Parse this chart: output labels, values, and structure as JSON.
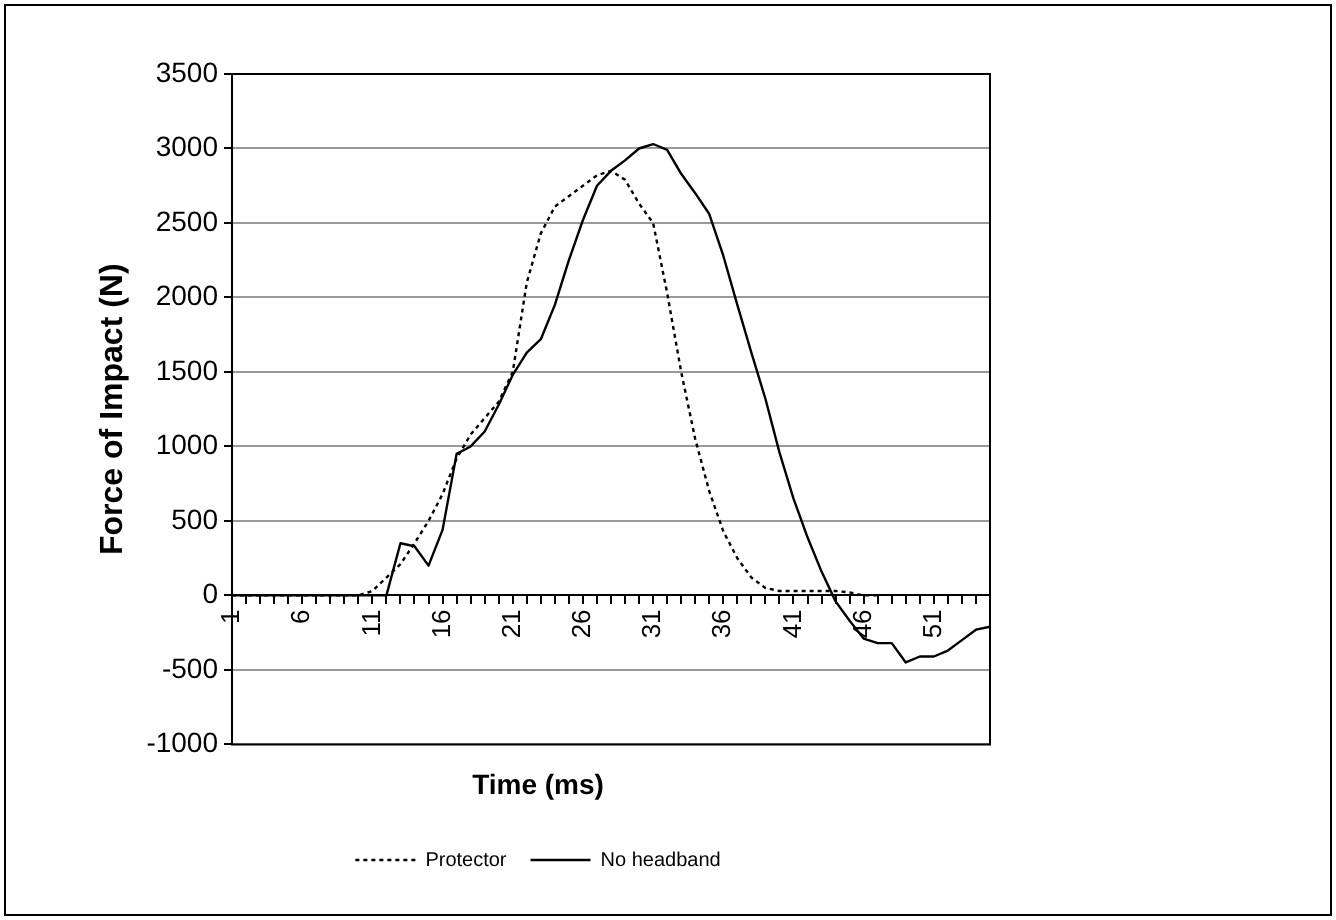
{
  "chart_data": {
    "type": "line",
    "xlabel": "Time (ms)",
    "ylabel": "Force of Impact (N)",
    "categories": [
      "1",
      null,
      null,
      null,
      null,
      "6",
      null,
      null,
      null,
      null,
      "11",
      null,
      null,
      null,
      null,
      "16",
      null,
      null,
      null,
      null,
      "21",
      null,
      null,
      null,
      null,
      "26",
      null,
      null,
      null,
      null,
      "31",
      null,
      null,
      null,
      null,
      "36",
      null,
      null,
      null,
      null,
      "41",
      null,
      null,
      null,
      null,
      "46",
      null,
      null,
      null,
      null,
      "51",
      null,
      null,
      null,
      null
    ],
    "series": [
      {
        "name": "Protector",
        "color": "#000000",
        "line_style": "dotted",
        "values": [
          0,
          0,
          0,
          0,
          0,
          0,
          0,
          0,
          0,
          0,
          30,
          120,
          210,
          350,
          500,
          680,
          920,
          1080,
          1190,
          1300,
          1500,
          2100,
          2430,
          2610,
          2680,
          2750,
          2820,
          2850,
          2790,
          2630,
          2500,
          2030,
          1500,
          1050,
          700,
          430,
          250,
          120,
          50,
          30,
          30,
          30,
          30,
          30,
          20,
          0,
          0,
          null,
          null,
          null,
          null,
          null,
          null,
          null,
          null
        ]
      },
      {
        "name": "No headband",
        "color": "#000000",
        "line_style": "solid",
        "values": [
          0,
          0,
          0,
          0,
          0,
          0,
          0,
          0,
          0,
          0,
          0,
          0,
          350,
          330,
          200,
          440,
          950,
          1000,
          1100,
          1280,
          1480,
          1630,
          1720,
          1950,
          2250,
          2520,
          2750,
          2850,
          2920,
          3000,
          3030,
          2990,
          2830,
          2700,
          2560,
          2280,
          1950,
          1630,
          1320,
          960,
          650,
          390,
          160,
          -40,
          -170,
          -290,
          -320,
          -320,
          -450,
          -410,
          -410,
          -370,
          -300,
          -230,
          -210
        ]
      }
    ],
    "ylim": [
      -1000,
      3500
    ],
    "yticks": [
      -1000,
      -500,
      0,
      500,
      1000,
      1500,
      2000,
      2500,
      3000,
      3500
    ],
    "grid": "y",
    "legend": "bottom",
    "marker": "none"
  }
}
